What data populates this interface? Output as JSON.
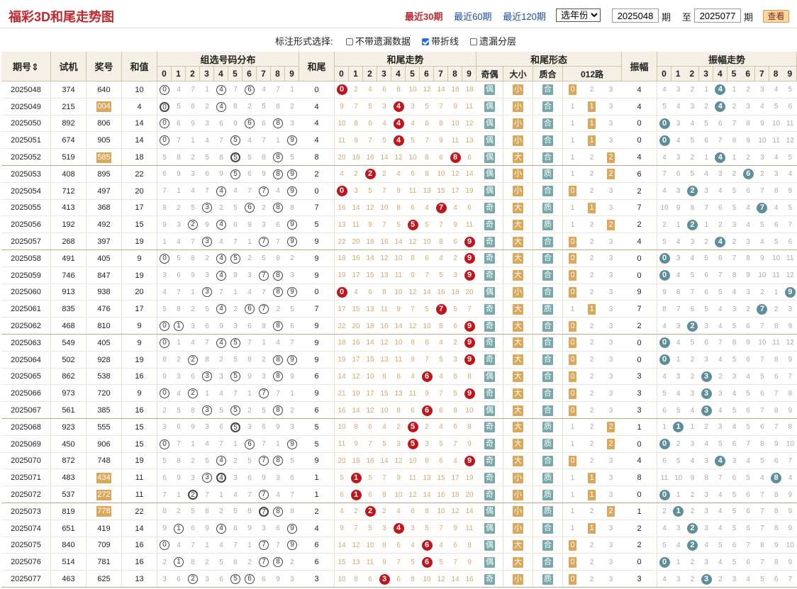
{
  "header": {
    "title": "福彩3D和尾走势图",
    "periods": [
      "最近30期",
      "最近60期",
      "最近120期"
    ],
    "active": 0,
    "year_select": "选年份",
    "from": "2025048",
    "from_unit": "期",
    "to_label": "至",
    "to": "2025077",
    "to_unit": "期",
    "query": "查看"
  },
  "options": {
    "label": "标注形式选择:",
    "items": [
      {
        "label": "不带遗漏数据",
        "checked": false
      },
      {
        "label": "带折线",
        "checked": true
      },
      {
        "label": "遗漏分层",
        "checked": false
      }
    ]
  },
  "columns": {
    "issue": "期号",
    "trial": "试机",
    "prize": "奖号",
    "sum": "和值",
    "group": "组选号码分布",
    "tail": "和尾",
    "tail_trend": "和尾走势",
    "tail_form": "和尾形态",
    "amp": "振幅",
    "amp_trend": "振幅走势",
    "odd_even": "奇偶",
    "big_small": "大小",
    "prime": "质合",
    "road": "012路",
    "digits": [
      "0",
      "1",
      "2",
      "3",
      "4",
      "5",
      "6",
      "7",
      "8",
      "9"
    ]
  },
  "rows": [
    {
      "issue": "2025048",
      "trial": "374",
      "prize": "640",
      "hl": false,
      "sum": "10",
      "tail": "0",
      "amp": "4"
    },
    {
      "issue": "2025049",
      "trial": "215",
      "prize": "004",
      "hl": true,
      "sum": "4",
      "tail": "4",
      "amp": "4"
    },
    {
      "issue": "2025050",
      "trial": "892",
      "prize": "806",
      "hl": false,
      "sum": "14",
      "tail": "4",
      "amp": "0"
    },
    {
      "issue": "2025051",
      "trial": "674",
      "prize": "905",
      "hl": false,
      "sum": "14",
      "tail": "4",
      "amp": "0"
    },
    {
      "issue": "2025052",
      "trial": "519",
      "prize": "585",
      "hl": true,
      "sum": "18",
      "tail": "8",
      "amp": "4"
    },
    {
      "issue": "2025053",
      "trial": "408",
      "prize": "895",
      "hl": false,
      "sum": "22",
      "tail": "2",
      "amp": "6"
    },
    {
      "issue": "2025054",
      "trial": "712",
      "prize": "497",
      "hl": false,
      "sum": "20",
      "tail": "0",
      "amp": "2"
    },
    {
      "issue": "2025055",
      "trial": "413",
      "prize": "368",
      "hl": false,
      "sum": "17",
      "tail": "7",
      "amp": "7"
    },
    {
      "issue": "2025056",
      "trial": "192",
      "prize": "492",
      "hl": false,
      "sum": "15",
      "tail": "5",
      "amp": "2"
    },
    {
      "issue": "2025057",
      "trial": "268",
      "prize": "397",
      "hl": false,
      "sum": "19",
      "tail": "9",
      "amp": "4"
    },
    {
      "issue": "2025058",
      "trial": "491",
      "prize": "405",
      "hl": false,
      "sum": "9",
      "tail": "9",
      "amp": "0"
    },
    {
      "issue": "2025059",
      "trial": "746",
      "prize": "847",
      "hl": false,
      "sum": "19",
      "tail": "9",
      "amp": "0"
    },
    {
      "issue": "2025060",
      "trial": "913",
      "prize": "938",
      "hl": false,
      "sum": "20",
      "tail": "0",
      "amp": "9"
    },
    {
      "issue": "2025061",
      "trial": "835",
      "prize": "476",
      "hl": false,
      "sum": "17",
      "tail": "7",
      "amp": "7"
    },
    {
      "issue": "2025062",
      "trial": "468",
      "prize": "810",
      "hl": false,
      "sum": "9",
      "tail": "9",
      "amp": "2"
    },
    {
      "issue": "2025063",
      "trial": "549",
      "prize": "405",
      "hl": false,
      "sum": "9",
      "tail": "9",
      "amp": "0"
    },
    {
      "issue": "2025064",
      "trial": "502",
      "prize": "928",
      "hl": false,
      "sum": "19",
      "tail": "9",
      "amp": "0"
    },
    {
      "issue": "2025065",
      "trial": "862",
      "prize": "538",
      "hl": false,
      "sum": "16",
      "tail": "6",
      "amp": "3"
    },
    {
      "issue": "2025066",
      "trial": "973",
      "prize": "720",
      "hl": false,
      "sum": "9",
      "tail": "9",
      "amp": "3"
    },
    {
      "issue": "2025067",
      "trial": "561",
      "prize": "385",
      "hl": false,
      "sum": "16",
      "tail": "6",
      "amp": "3"
    },
    {
      "issue": "2025068",
      "trial": "923",
      "prize": "555",
      "hl": false,
      "sum": "15",
      "tail": "5",
      "amp": "1"
    },
    {
      "issue": "2025069",
      "trial": "450",
      "prize": "906",
      "hl": false,
      "sum": "15",
      "tail": "5",
      "amp": "0"
    },
    {
      "issue": "2025070",
      "trial": "872",
      "prize": "748",
      "hl": false,
      "sum": "19",
      "tail": "9",
      "amp": "4"
    },
    {
      "issue": "2025071",
      "trial": "483",
      "prize": "434",
      "hl": true,
      "sum": "11",
      "tail": "1",
      "amp": "8"
    },
    {
      "issue": "2025072",
      "trial": "537",
      "prize": "272",
      "hl": true,
      "sum": "11",
      "tail": "1",
      "amp": "0"
    },
    {
      "issue": "2025073",
      "trial": "819",
      "prize": "778",
      "hl": true,
      "sum": "22",
      "tail": "2",
      "amp": "1"
    },
    {
      "issue": "2025074",
      "trial": "651",
      "prize": "419",
      "hl": false,
      "sum": "14",
      "tail": "4",
      "amp": "2"
    },
    {
      "issue": "2025075",
      "trial": "840",
      "prize": "709",
      "hl": false,
      "sum": "16",
      "tail": "6",
      "amp": "2"
    },
    {
      "issue": "2025076",
      "trial": "514",
      "prize": "781",
      "hl": false,
      "sum": "16",
      "tail": "6",
      "amp": "0"
    },
    {
      "issue": "2025077",
      "trial": "463",
      "prize": "625",
      "hl": false,
      "sum": "13",
      "tail": "3",
      "amp": "3"
    }
  ],
  "colors": {
    "red": "#c0151d",
    "teal": "#5e8f98",
    "tan": "#f5f0e6",
    "orange": "#dba85b",
    "blue_tag": "#79a8aa"
  }
}
